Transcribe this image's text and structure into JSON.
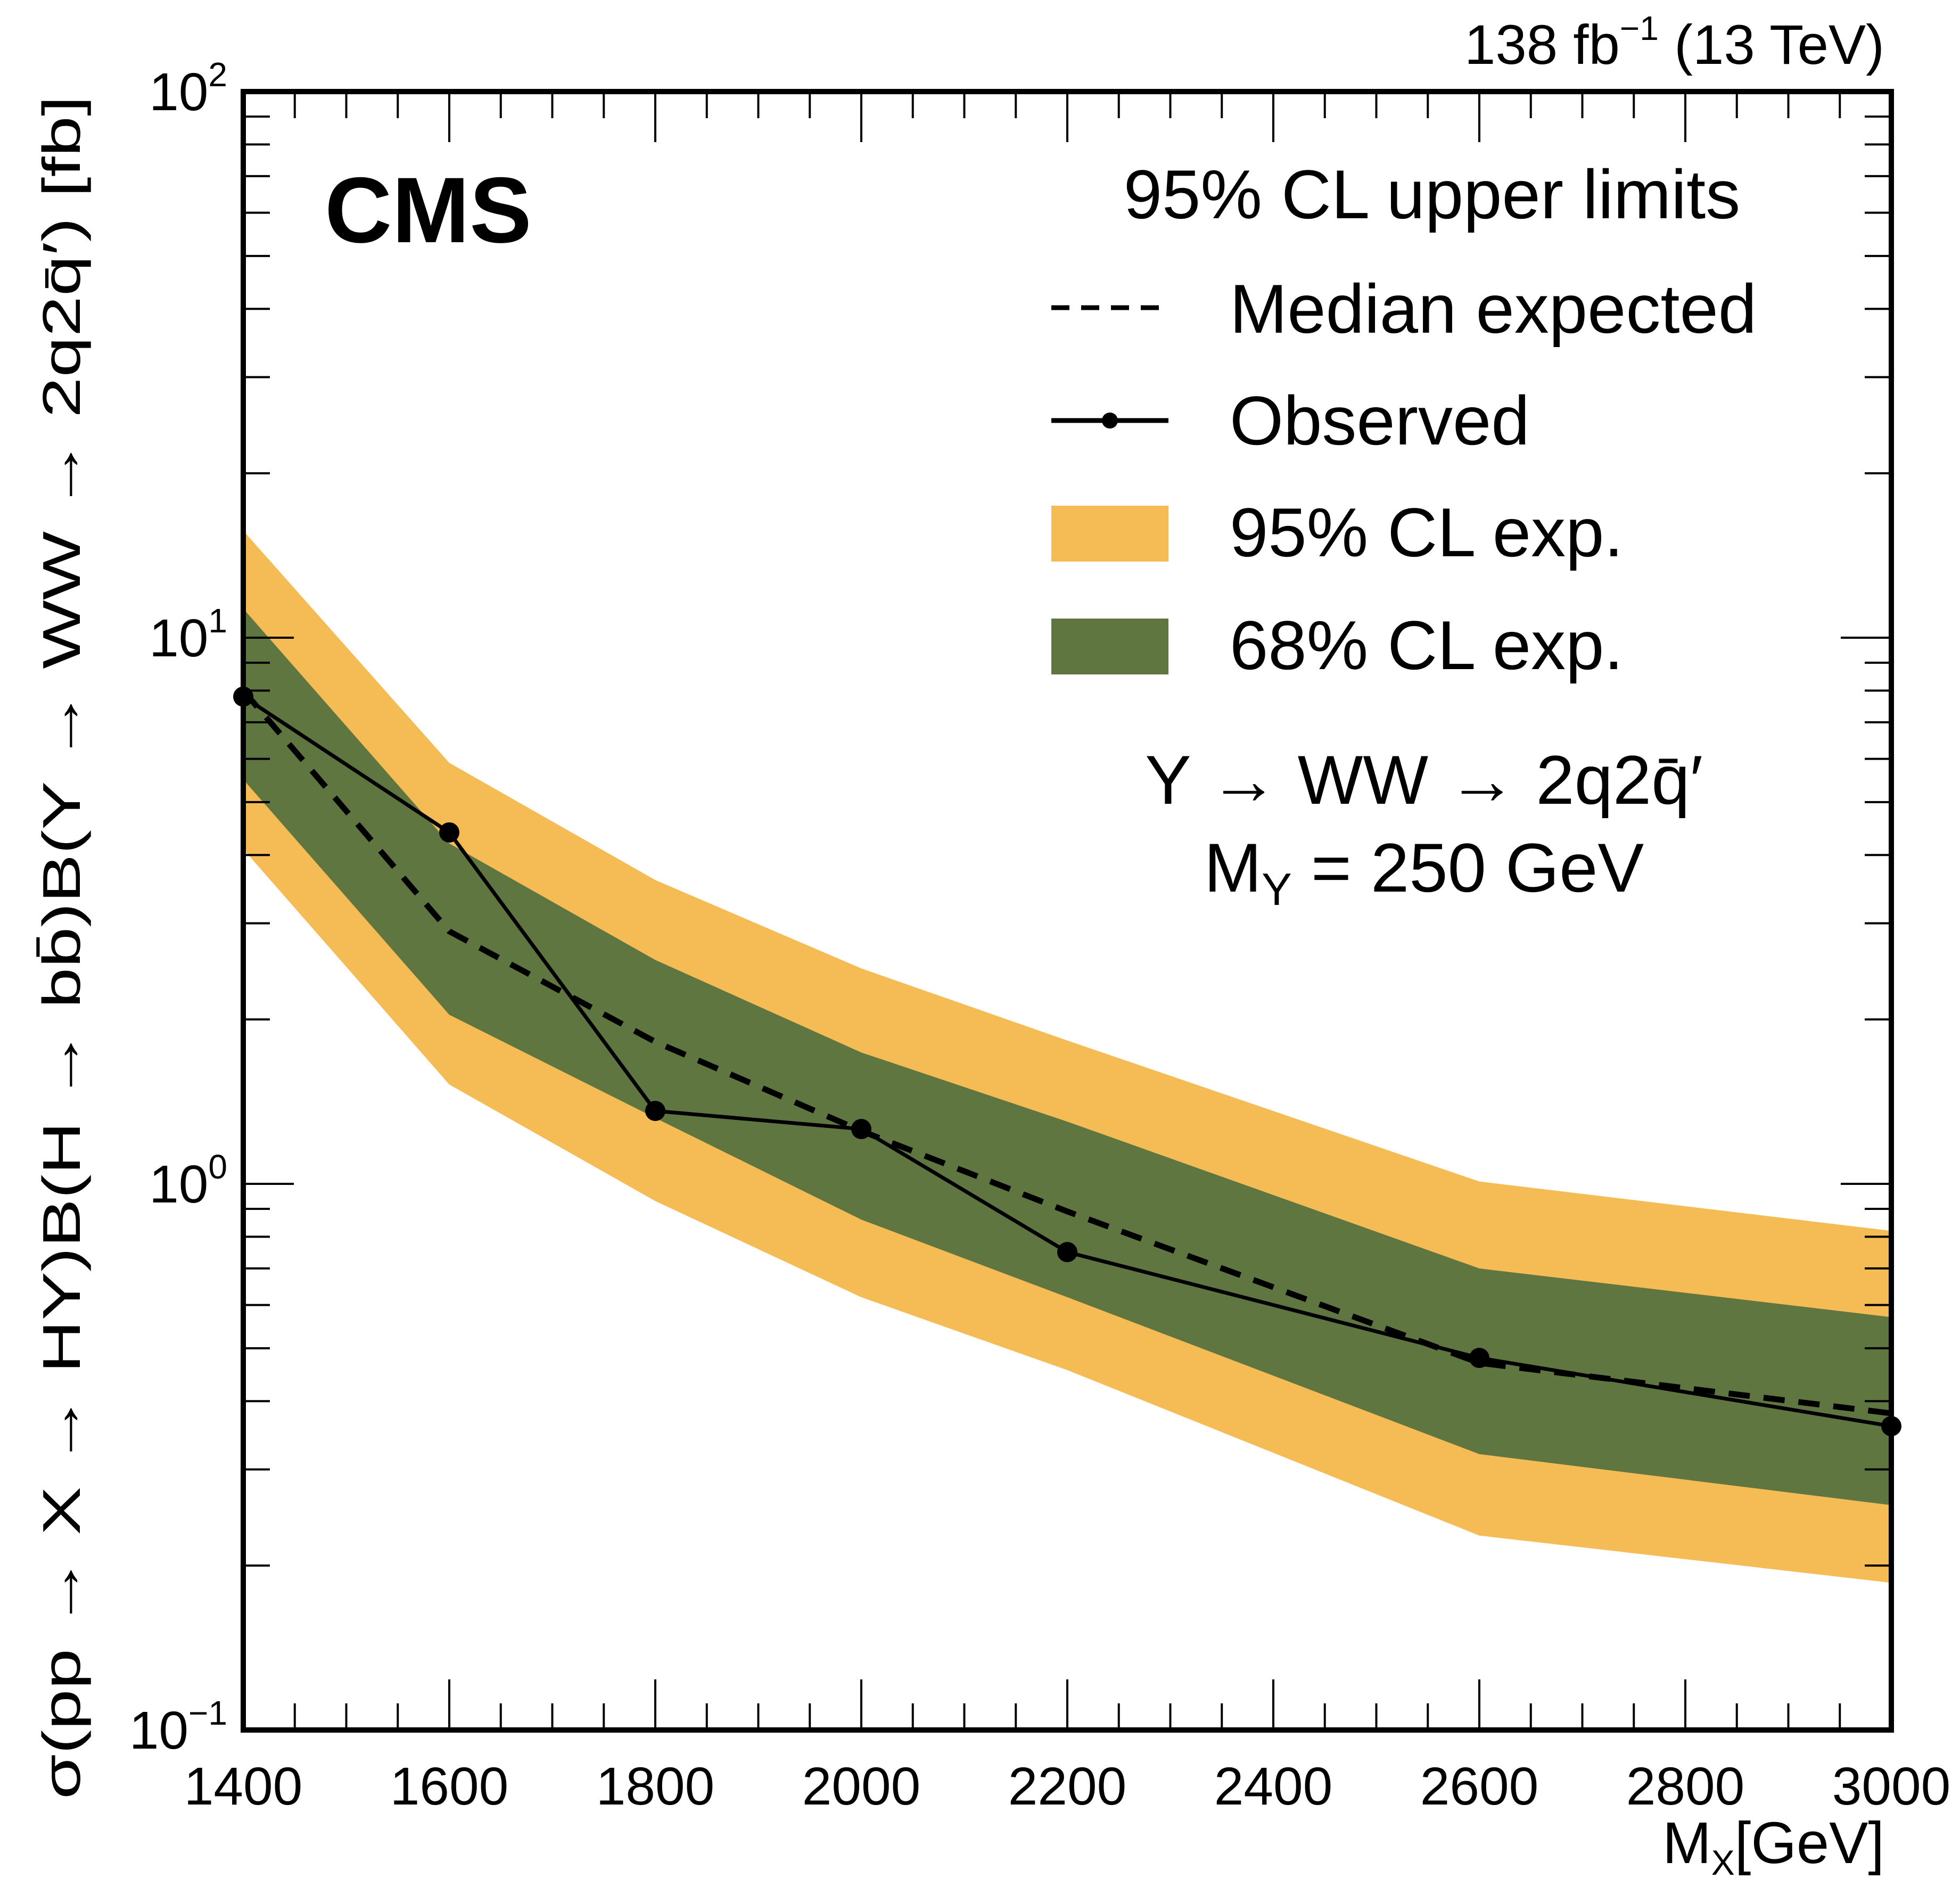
{
  "chart_data": {
    "type": "line",
    "title": "",
    "experiment_label": "CMS",
    "lumi_label": {
      "main": "138 fb",
      "sup": "−1",
      "suffix": " (13 TeV)"
    },
    "xlabel": {
      "main": "M",
      "sub": "X",
      "suffix": "[GeV]"
    },
    "ylabel": "σ(pp → X → HY)B(H → bb̄)B(Y → WW → 2q2q̄′) [fb]",
    "xlim": [
      1400,
      3000
    ],
    "ylim": [
      0.1,
      100
    ],
    "yscale": "log",
    "x_ticks": [
      "1400",
      "1600",
      "1800",
      "2000",
      "2200",
      "2400",
      "2600",
      "2800",
      "3000"
    ],
    "y_ticks": [
      {
        "base": "10",
        "exp": "−1"
      },
      {
        "base": "10",
        "exp": "0"
      },
      {
        "base": "10",
        "exp": "1"
      },
      {
        "base": "10",
        "exp": "2"
      }
    ],
    "x": [
      1400,
      1600,
      1800,
      2000,
      2200,
      2600,
      3000
    ],
    "series": [
      {
        "name": "Observed",
        "style": "solid-markers",
        "color": "#000000",
        "values": [
          7.8,
          4.4,
          1.36,
          1.26,
          0.75,
          0.48,
          0.36
        ]
      },
      {
        "name": "Median expected",
        "style": "dashed",
        "color": "#000000",
        "values": [
          8.0,
          2.9,
          1.82,
          1.25,
          0.89,
          0.47,
          0.38
        ]
      }
    ],
    "bands": [
      {
        "name": "95% CL exp.",
        "color": "#F5BB54",
        "low": [
          4.1,
          1.52,
          0.93,
          0.62,
          0.456,
          0.227,
          0.186
        ],
        "high": [
          15.7,
          5.9,
          3.6,
          2.48,
          1.83,
          1.01,
          0.82
        ]
      },
      {
        "name": "68% CL exp.",
        "color": "#607641",
        "low": [
          5.5,
          2.04,
          1.32,
          0.86,
          0.62,
          0.32,
          0.258
        ],
        "high": [
          11.3,
          4.2,
          2.57,
          1.74,
          1.3,
          0.7,
          0.57
        ]
      }
    ],
    "legend": {
      "header": "95% CL upper limits",
      "entries": [
        "Median expected",
        "Observed",
        "95% CL exp.",
        "68% CL exp."
      ],
      "placement": "top-right"
    },
    "annotations": {
      "process": "Y → WW → 2q2q̄′",
      "mass_label": {
        "main": "M",
        "sub": "Y",
        "suffix": " = 250 GeV"
      }
    },
    "grid": false
  }
}
